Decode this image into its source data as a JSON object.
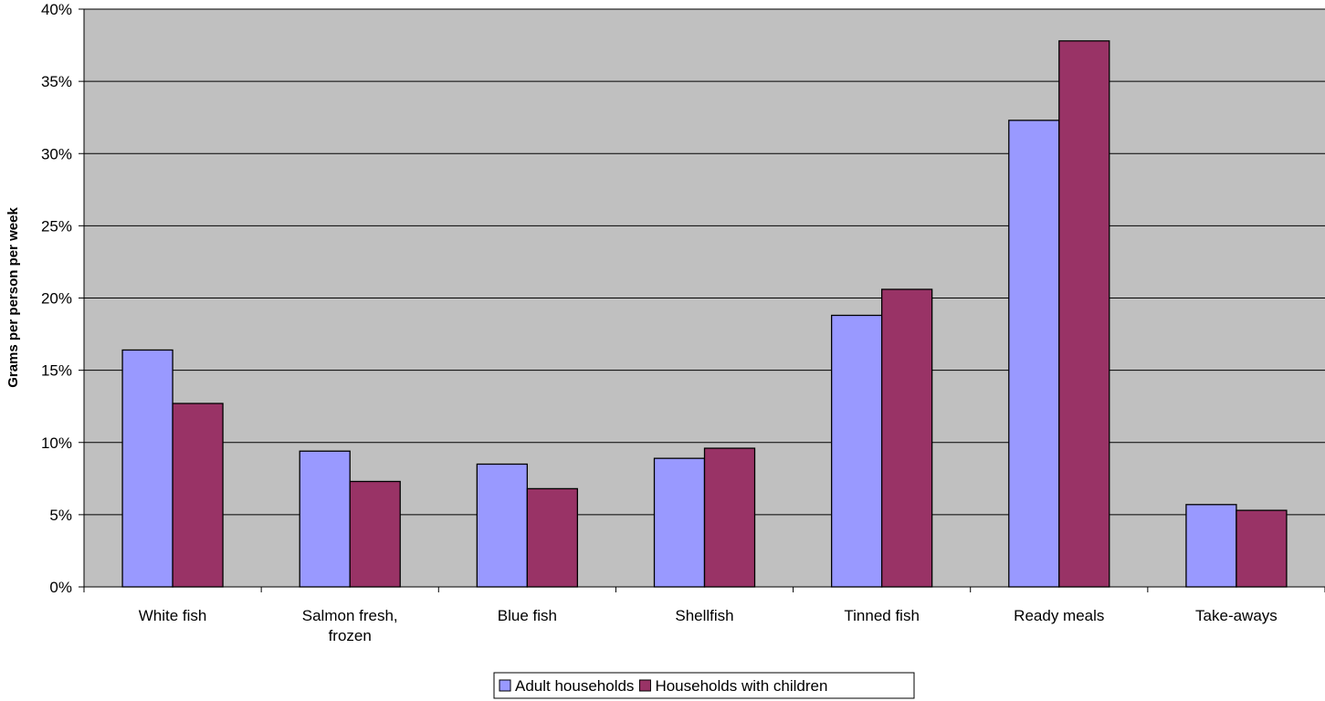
{
  "chart_data": {
    "type": "bar",
    "title": "",
    "xlabel": "",
    "ylabel": "Grams per person per week",
    "ylim": [
      0,
      40
    ],
    "yticks": [
      "0%",
      "5%",
      "10%",
      "15%",
      "20%",
      "25%",
      "30%",
      "35%",
      "40%"
    ],
    "grid": true,
    "legend_position": "bottom",
    "plot_background": "#c0c0c0",
    "categories": [
      [
        "White fish"
      ],
      [
        "Salmon fresh,",
        "frozen"
      ],
      [
        "Blue fish"
      ],
      [
        "Shellfish"
      ],
      [
        "Tinned fish"
      ],
      [
        "Ready meals"
      ],
      [
        "Take-aways"
      ]
    ],
    "series": [
      {
        "name": "Adult households",
        "color": "#9999ff",
        "values": [
          16.4,
          9.4,
          8.5,
          8.9,
          18.8,
          32.3,
          5.7
        ]
      },
      {
        "name": "Households with children",
        "color": "#993366",
        "values": [
          12.7,
          7.3,
          6.8,
          9.6,
          20.6,
          37.8,
          5.3
        ]
      }
    ]
  }
}
